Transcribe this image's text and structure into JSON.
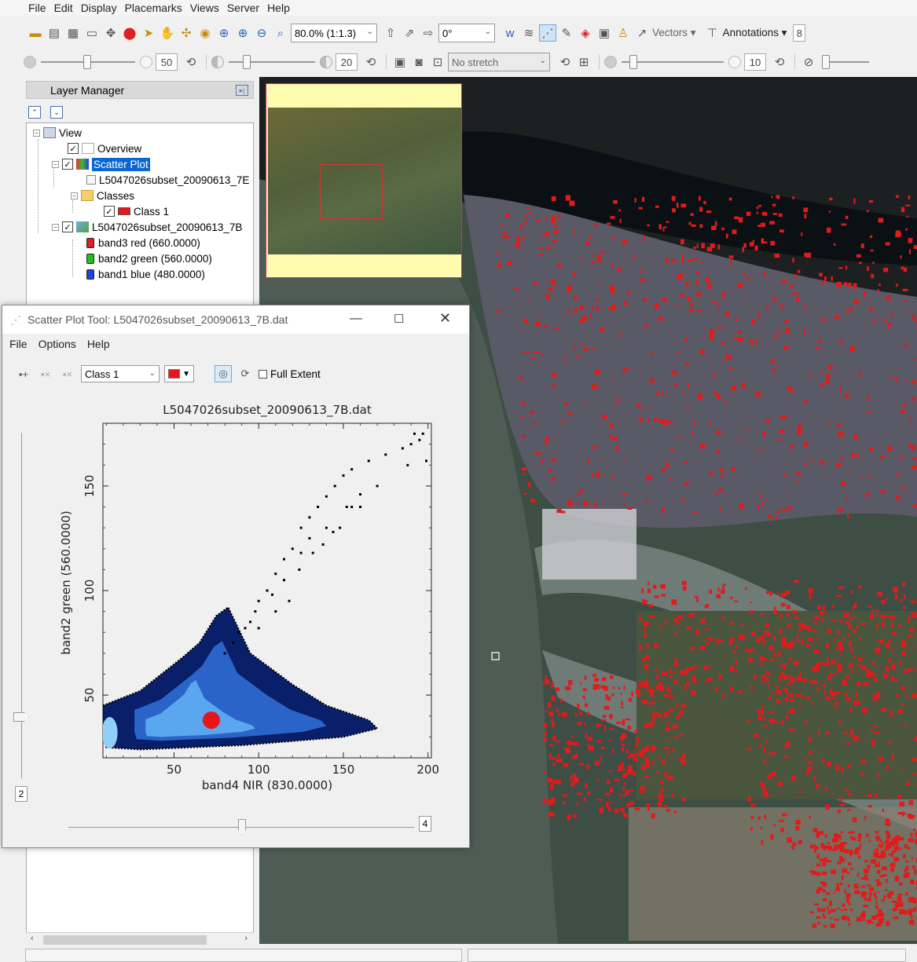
{
  "menubar": {
    "items": [
      "File",
      "Edit",
      "Display",
      "Placemarks",
      "Views",
      "Server",
      "Help"
    ]
  },
  "toolbar1": {
    "zoom_value": "80.0% (1:1.3)",
    "rotation_value": "0°",
    "vectors_label": "Vectors",
    "annotations_label": "Annotations",
    "partial_box": "8",
    "icons": [
      "open-icon",
      "clipboard-icon",
      "ntf-icon",
      "monitor-icon",
      "move-icon",
      "pin-icon",
      "cursor-icon",
      "hand-icon",
      "pan-icon",
      "globe-icon",
      "zoom-fixed-icon",
      "zoom-in-icon",
      "zoom-out-icon",
      "zoom-extent-icon"
    ]
  },
  "toolbar2": {
    "brightness_value": "50",
    "contrast_value": "20",
    "stretch_value": "No stretch",
    "sharpen_value": "10"
  },
  "layer_manager": {
    "title": "Layer Manager",
    "tree": {
      "view": "View",
      "overview": "Overview",
      "scatter_plot": "Scatter Plot",
      "scatter_file": "L5047026subset_20090613_7E",
      "classes": "Classes",
      "class1": "Class 1",
      "raster_file": "L5047026subset_20090613_7B",
      "band3": "band3 red (660.0000)",
      "band2": "band2 green (560.0000)",
      "band1": "band1 blue (480.0000)"
    },
    "band_colors": {
      "band3": "#e02020",
      "band2": "#20c020",
      "band1": "#2040e0"
    }
  },
  "scatter_window": {
    "title": "Scatter Plot Tool: L5047026subset_20090613_7B.dat",
    "menu": [
      "File",
      "Options",
      "Help"
    ],
    "class_selector": "Class 1",
    "class_color": "#e8151b",
    "full_extent_label": "Full Extent",
    "vslider_value": "2",
    "hslider_value": "4"
  },
  "chart_data": {
    "type": "scatter",
    "title": "L5047026subset_20090613_7B.dat",
    "xlabel": "band4 NIR (830.0000)",
    "ylabel": "band2 green (560.0000)",
    "xlim": [
      8,
      202
    ],
    "ylim": [
      20,
      180
    ],
    "xticks": [
      50,
      100,
      150,
      200
    ],
    "yticks": [
      50,
      100,
      150
    ],
    "density_region": {
      "description": "dense blue 2D histogram",
      "outline": [
        [
          8,
          45
        ],
        [
          30,
          52
        ],
        [
          55,
          68
        ],
        [
          65,
          75
        ],
        [
          75,
          88
        ],
        [
          82,
          92
        ],
        [
          95,
          70
        ],
        [
          120,
          55
        ],
        [
          140,
          45
        ],
        [
          165,
          38
        ],
        [
          170,
          34
        ],
        [
          150,
          30
        ],
        [
          120,
          28
        ],
        [
          90,
          26
        ],
        [
          60,
          25
        ],
        [
          30,
          24
        ],
        [
          10,
          25
        ],
        [
          8,
          30
        ]
      ]
    },
    "sparse_points": [
      [
        105,
        100
      ],
      [
        110,
        108
      ],
      [
        115,
        115
      ],
      [
        120,
        120
      ],
      [
        125,
        130
      ],
      [
        130,
        135
      ],
      [
        135,
        140
      ],
      [
        140,
        145
      ],
      [
        145,
        150
      ],
      [
        150,
        155
      ],
      [
        155,
        158
      ],
      [
        165,
        162
      ],
      [
        175,
        165
      ],
      [
        185,
        168
      ],
      [
        190,
        170
      ],
      [
        195,
        172
      ],
      [
        197,
        175
      ],
      [
        199,
        162
      ],
      [
        192,
        175
      ],
      [
        188,
        160
      ],
      [
        170,
        150
      ],
      [
        160,
        146
      ],
      [
        140,
        130
      ],
      [
        130,
        125
      ],
      [
        125,
        118
      ],
      [
        115,
        105
      ],
      [
        108,
        98
      ],
      [
        100,
        95
      ],
      [
        98,
        90
      ],
      [
        95,
        85
      ],
      [
        92,
        82
      ],
      [
        88,
        80
      ],
      [
        85,
        75
      ],
      [
        80,
        70
      ],
      [
        100,
        82
      ],
      [
        110,
        90
      ],
      [
        118,
        95
      ],
      [
        124,
        110
      ],
      [
        132,
        118
      ],
      [
        138,
        122
      ],
      [
        144,
        128
      ],
      [
        148,
        130
      ],
      [
        152,
        140
      ],
      [
        155,
        140
      ],
      [
        160,
        140
      ]
    ],
    "class_points": {
      "name": "Class 1",
      "center": [
        72,
        38
      ],
      "color": "#e8151b"
    }
  }
}
